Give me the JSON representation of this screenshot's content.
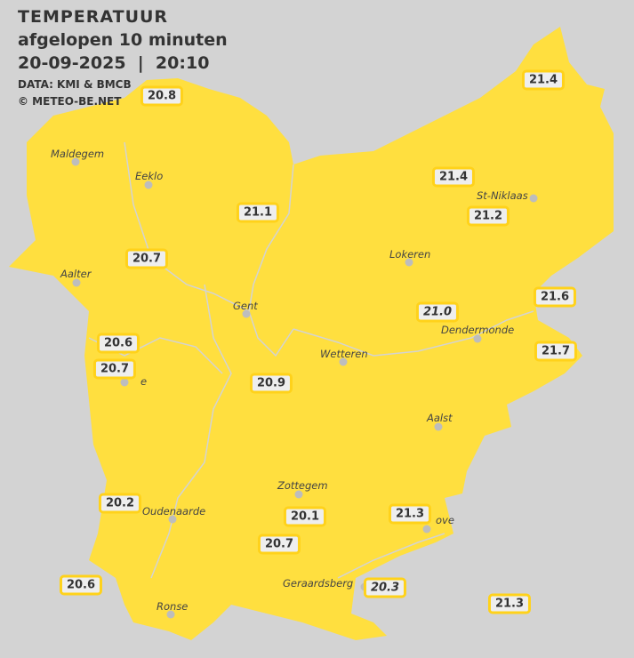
{
  "header": {
    "title": "TEMPERATUUR",
    "subtitle": "afgelopen 10 minuten",
    "datetime": "20-09-2025  |  20:10",
    "source": "DATA: KMI & BMCB",
    "copyright": "© METEO-BE.NET"
  },
  "colors": {
    "region": "#ffdf3f",
    "background": "#d3d3d3",
    "label_border": "#ffd21a"
  },
  "cities": [
    {
      "name": "Maldegem"
    },
    {
      "name": "Eeklo"
    },
    {
      "name": "Aalter"
    },
    {
      "name": "Gent"
    },
    {
      "name": "Lokeren"
    },
    {
      "name": "St-Niklaas"
    },
    {
      "name": "Dendermonde"
    },
    {
      "name": "Wetteren"
    },
    {
      "name": "Aalst"
    },
    {
      "name": "Zottegem"
    },
    {
      "name": "Oudenaarde"
    },
    {
      "name": "Ronse"
    },
    {
      "name": "Geraardsberg"
    },
    {
      "name": "ove"
    },
    {
      "name": "e"
    }
  ],
  "readings": [
    {
      "value": "20.8"
    },
    {
      "value": "21.4"
    },
    {
      "value": "21.4"
    },
    {
      "value": "21.2"
    },
    {
      "value": "21.1"
    },
    {
      "value": "20.7"
    },
    {
      "value": "21.6"
    },
    {
      "value": "21.0",
      "style": "italic"
    },
    {
      "value": "21.7"
    },
    {
      "value": "20.6"
    },
    {
      "value": "20.7"
    },
    {
      "value": "20.9"
    },
    {
      "value": "20.2"
    },
    {
      "value": "20.1"
    },
    {
      "value": "21.3"
    },
    {
      "value": "20.7"
    },
    {
      "value": "20.6"
    },
    {
      "value": "20.3",
      "style": "italic"
    },
    {
      "value": "21.3"
    }
  ]
}
